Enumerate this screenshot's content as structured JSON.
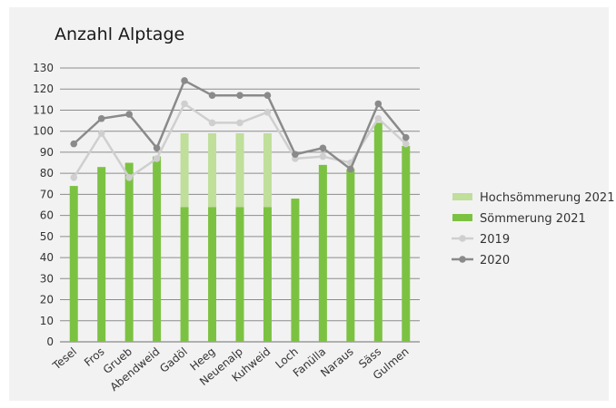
{
  "chart_data": {
    "type": "bar",
    "title": "Anzahl Alptage",
    "xlabel": "",
    "ylabel": "",
    "ylim": [
      0,
      130
    ],
    "yticks": [
      0,
      10,
      20,
      30,
      40,
      50,
      60,
      70,
      80,
      90,
      100,
      110,
      120,
      130
    ],
    "grid": true,
    "legend_position": "right",
    "categories": [
      "Tesel",
      "Fros",
      "Grueb",
      "Abendweid",
      "Gadöl",
      "Heeg",
      "Neuenalp",
      "Kuhweid",
      "Loch",
      "Fanülla",
      "Naraus",
      "Säss",
      "Gulmen"
    ],
    "series": [
      {
        "name": "Hochsömmerung 2021",
        "kind": "bar-stacked",
        "color": "#bfdf9a",
        "values": [
          0,
          0,
          0,
          0,
          35,
          35,
          35,
          35,
          0,
          0,
          0,
          0,
          0
        ]
      },
      {
        "name": "Sömmerung 2021",
        "kind": "bar",
        "color": "#7cc242",
        "values": [
          74,
          83,
          85,
          88,
          64,
          64,
          64,
          64,
          68,
          84,
          82,
          104,
          93
        ]
      },
      {
        "name": "2019",
        "kind": "line",
        "color": "#cfcfcf",
        "values": [
          78,
          99,
          78,
          87,
          113,
          104,
          104,
          109,
          87,
          88,
          85,
          106,
          94
        ]
      },
      {
        "name": "2020",
        "kind": "line",
        "color": "#8a8a8a",
        "values": [
          94,
          106,
          108,
          92,
          124,
          117,
          117,
          117,
          89,
          92,
          82,
          113,
          97
        ]
      }
    ]
  }
}
